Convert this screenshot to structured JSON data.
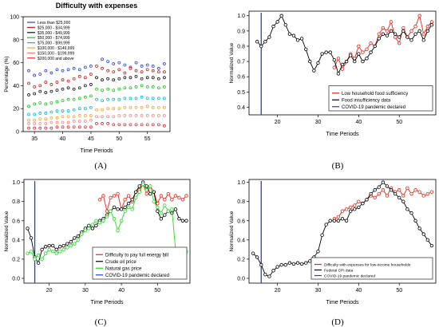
{
  "colors": {
    "axis": "#000000",
    "red": "#e8231a",
    "black": "#000000",
    "blue": "#1f3fd9",
    "green": "#22dd22",
    "income": [
      "#2442e0",
      "#c01e1e",
      "#111111",
      "#14c814",
      "#00bcd4",
      "#ffa024",
      "#ff8080",
      "#e02a2a"
    ]
  },
  "chart_data": [
    {
      "panel": "(A)",
      "type": "line",
      "title": "Difficulty with expenses",
      "xlabel": "Time Periods",
      "ylabel": "Percentage (%)",
      "xlim": [
        33,
        59
      ],
      "ylim": [
        0,
        100
      ],
      "xticks": [
        35,
        40,
        45,
        50,
        55
      ],
      "yticks": [
        0,
        20,
        40,
        60,
        80,
        100
      ],
      "legend_position": "top-left",
      "x": [
        34,
        35,
        36,
        37,
        38,
        39,
        40,
        41,
        42,
        43,
        44,
        45,
        46,
        47,
        48,
        49,
        50,
        51,
        52,
        53,
        54,
        55,
        56,
        57,
        58
      ],
      "series": [
        {
          "name": "Less than $25,000",
          "values": [
            53,
            49,
            50,
            53,
            51,
            54,
            53,
            54,
            55,
            54,
            56,
            57,
            66,
            63,
            61,
            59,
            60,
            58,
            56,
            60,
            57,
            58,
            57,
            55,
            59
          ]
        },
        {
          "name": "$25,000 - $34,999",
          "values": [
            42,
            39,
            40,
            43,
            41,
            43,
            45,
            44,
            46,
            48,
            47,
            50,
            57,
            55,
            53,
            52,
            54,
            51,
            55,
            53,
            52,
            54,
            53,
            52,
            52
          ]
        },
        {
          "name": "$35,000 - $49,999",
          "values": [
            32,
            33,
            35,
            34,
            35,
            36,
            37,
            38,
            37,
            38,
            40,
            41,
            47,
            45,
            46,
            45,
            46,
            47,
            47,
            48,
            46,
            47,
            47,
            46,
            47
          ]
        },
        {
          "name": "$50,000 - $74,999",
          "values": [
            22,
            24,
            25,
            24,
            25,
            26,
            27,
            28,
            28,
            29,
            30,
            31,
            37,
            36,
            37,
            36,
            37,
            38,
            38,
            39,
            40,
            39,
            39,
            38,
            39
          ]
        },
        {
          "name": "$75,000 - $99,999",
          "values": [
            15,
            15,
            16,
            16,
            17,
            18,
            18,
            18,
            19,
            20,
            20,
            21,
            28,
            27,
            28,
            28,
            28,
            29,
            29,
            29,
            30,
            29,
            29,
            29,
            29
          ]
        },
        {
          "name": "$100,000 - $149,999",
          "values": [
            10,
            10,
            11,
            11,
            12,
            12,
            13,
            13,
            13,
            14,
            14,
            14,
            19,
            19,
            20,
            20,
            20,
            21,
            21,
            21,
            21,
            22,
            21,
            21,
            21
          ]
        },
        {
          "name": "$150,000 - $199,999",
          "values": [
            7,
            7,
            7,
            7,
            8,
            8,
            8,
            8,
            9,
            9,
            9,
            10,
            13,
            13,
            13,
            13,
            14,
            14,
            14,
            14,
            14,
            14,
            14,
            14,
            14
          ]
        },
        {
          "name": "$200,000 and above",
          "values": [
            3,
            3,
            3,
            3,
            3,
            4,
            4,
            4,
            4,
            4,
            4,
            4,
            7,
            7,
            7,
            6,
            6,
            6,
            6,
            6,
            6,
            6,
            6,
            6,
            5
          ]
        }
      ]
    },
    {
      "panel": "(B)",
      "type": "line",
      "title": "",
      "xlabel": "Time Periods",
      "ylabel": "Normalized Value",
      "xlim": [
        13,
        59
      ],
      "ylim": [
        0.35,
        1.03
      ],
      "xticks": [
        20,
        30,
        40,
        50
      ],
      "yticks": [
        0.4,
        0.5,
        0.6,
        0.7,
        0.8,
        0.9,
        1.0
      ],
      "legend_position": "bottom-right",
      "vline_x": 16,
      "series": [
        {
          "name": "Low household food sufficiency",
          "color_key": "red",
          "x": [
            34,
            35,
            36,
            37,
            38,
            39,
            40,
            41,
            42,
            43,
            44,
            45,
            46,
            47,
            48,
            49,
            50,
            51,
            52,
            53,
            54,
            55,
            56,
            57,
            58
          ],
          "values": [
            0.66,
            0.72,
            0.65,
            0.7,
            0.75,
            0.72,
            0.8,
            0.76,
            0.78,
            0.82,
            0.8,
            0.88,
            0.92,
            0.9,
            0.96,
            0.86,
            0.82,
            0.92,
            0.86,
            0.9,
            0.93,
            1.0,
            0.88,
            0.93,
            0.96
          ]
        },
        {
          "name": "Food insufficiency data",
          "color_key": "black",
          "x": [
            15,
            16,
            17,
            18,
            19,
            20,
            21,
            22,
            23,
            24,
            25,
            26,
            27,
            28,
            29,
            30,
            31,
            32,
            33,
            34,
            35,
            36,
            37,
            38,
            39,
            40,
            41,
            42,
            43,
            44,
            45,
            46,
            47,
            48,
            49,
            50,
            51,
            52,
            53,
            54,
            55,
            56,
            57,
            58
          ],
          "values": [
            0.83,
            0.8,
            0.83,
            0.86,
            0.93,
            0.96,
            1.0,
            0.94,
            0.88,
            0.87,
            0.84,
            0.85,
            0.78,
            0.7,
            0.64,
            0.69,
            0.75,
            0.76,
            0.76,
            0.71,
            0.62,
            0.68,
            0.7,
            0.74,
            0.7,
            0.75,
            0.7,
            0.72,
            0.76,
            0.8,
            0.85,
            0.88,
            0.87,
            0.9,
            0.88,
            0.86,
            0.9,
            0.86,
            0.84,
            0.88,
            0.9,
            0.84,
            0.9,
            0.94
          ]
        }
      ]
    },
    {
      "panel": "(C)",
      "type": "line",
      "title": "",
      "xlabel": "Time Periods",
      "ylabel": "Normalized Value",
      "xlim": [
        13,
        59
      ],
      "ylim": [
        -0.05,
        1.03
      ],
      "xticks": [
        20,
        30,
        40,
        50
      ],
      "yticks": [
        0.0,
        0.2,
        0.4,
        0.6,
        0.8,
        1.0
      ],
      "legend_position": "bottom-right",
      "vline_x": 16,
      "series": [
        {
          "name": "Difficulty to pay full energy bill",
          "color_key": "red",
          "x": [
            34,
            35,
            36,
            37,
            38,
            39,
            40,
            41,
            42,
            43,
            44,
            45,
            46,
            47,
            48,
            49,
            50,
            51,
            52,
            53,
            54,
            55,
            56,
            57,
            58
          ],
          "values": [
            0.82,
            0.86,
            0.7,
            0.84,
            0.86,
            0.88,
            0.72,
            0.82,
            0.86,
            0.8,
            0.9,
            0.92,
            0.98,
            0.88,
            0.96,
            0.9,
            0.78,
            0.86,
            0.82,
            0.88,
            0.82,
            0.86,
            0.84,
            0.82,
            0.86
          ]
        },
        {
          "name": "Crude oil price",
          "color_key": "black",
          "x": [
            14,
            15,
            16,
            17,
            18,
            19,
            20,
            21,
            22,
            23,
            24,
            25,
            26,
            27,
            28,
            29,
            30,
            31,
            32,
            33,
            34,
            35,
            36,
            37,
            38,
            39,
            40,
            41,
            42,
            43,
            44,
            45,
            46,
            47,
            48,
            49,
            50,
            51,
            52,
            53,
            54,
            55,
            56,
            57,
            58
          ],
          "values": [
            0.52,
            0.42,
            0.22,
            0.16,
            0.3,
            0.33,
            0.34,
            0.34,
            0.3,
            0.33,
            0.34,
            0.36,
            0.38,
            0.42,
            0.44,
            0.48,
            0.52,
            0.55,
            0.52,
            0.55,
            0.6,
            0.62,
            0.66,
            0.7,
            0.74,
            0.72,
            0.72,
            0.74,
            0.78,
            0.82,
            0.9,
            0.96,
            1.0,
            0.96,
            0.88,
            0.9,
            0.7,
            0.62,
            0.66,
            0.7,
            0.68,
            0.72,
            0.62,
            0.6,
            0.6
          ]
        },
        {
          "name": "Natural gas price",
          "color_key": "green",
          "x": [
            14,
            15,
            16,
            17,
            18,
            19,
            20,
            21,
            22,
            23,
            24,
            25,
            26,
            27,
            28,
            29,
            30,
            31,
            32,
            33,
            34,
            35,
            36,
            37,
            38,
            39,
            40,
            41,
            42,
            43,
            44,
            45,
            46,
            47,
            48,
            49,
            50,
            51,
            52,
            53,
            54,
            55,
            56,
            57,
            58
          ],
          "values": [
            0.26,
            0.28,
            0.2,
            0.24,
            0.2,
            0.26,
            0.3,
            0.28,
            0.26,
            0.28,
            0.3,
            0.32,
            0.34,
            0.36,
            0.4,
            0.46,
            0.5,
            0.52,
            0.56,
            0.6,
            0.58,
            0.6,
            0.64,
            0.7,
            0.62,
            0.5,
            0.6,
            0.7,
            0.74,
            0.72,
            0.84,
            0.9,
            0.98,
            0.92,
            0.96,
            0.8,
            0.74,
            0.68,
            0.76,
            0.7,
            0.72,
            0.3,
            0.28,
            0.26,
            0.28
          ]
        }
      ]
    },
    {
      "panel": "(D)",
      "type": "line",
      "title": "",
      "xlabel": "Time Periods",
      "ylabel": "Normalized Value",
      "xlim": [
        13,
        59
      ],
      "ylim": [
        -0.05,
        1.03
      ],
      "xticks": [
        20,
        30,
        40,
        50
      ],
      "yticks": [
        0.0,
        0.2,
        0.4,
        0.6,
        0.8,
        1.0
      ],
      "legend_position": "bottom-right",
      "vline_x": 16,
      "series": [
        {
          "name": "Difficulty with expenses for low-income households",
          "color_key": "red",
          "x": [
            34,
            35,
            36,
            37,
            38,
            39,
            40,
            41,
            42,
            43,
            44,
            45,
            46,
            47,
            48,
            49,
            50,
            51,
            52,
            53,
            54,
            55,
            56,
            57,
            58
          ],
          "values": [
            0.62,
            0.64,
            0.7,
            0.72,
            0.74,
            0.76,
            0.8,
            0.78,
            0.82,
            0.86,
            0.84,
            0.88,
            0.92,
            0.86,
            0.94,
            0.9,
            0.92,
            0.86,
            0.94,
            0.88,
            0.92,
            0.9,
            0.86,
            0.88,
            0.9
          ]
        },
        {
          "name": "Federal CPI data",
          "color_key": "black",
          "x": [
            14,
            15,
            16,
            17,
            18,
            19,
            20,
            21,
            22,
            23,
            24,
            25,
            26,
            27,
            28,
            29,
            30,
            31,
            32,
            33,
            34,
            35,
            36,
            37,
            38,
            39,
            40,
            41,
            42,
            43,
            44,
            45,
            46,
            47,
            48,
            49,
            50,
            51,
            52,
            53,
            54,
            55,
            56,
            57,
            58
          ],
          "values": [
            0.26,
            0.22,
            0.14,
            0.04,
            0.02,
            0.08,
            0.12,
            0.14,
            0.14,
            0.16,
            0.15,
            0.16,
            0.15,
            0.16,
            0.18,
            0.22,
            0.28,
            0.45,
            0.56,
            0.6,
            0.6,
            0.6,
            0.62,
            0.6,
            0.7,
            0.72,
            0.74,
            0.78,
            0.82,
            0.88,
            0.92,
            0.95,
            1.0,
            0.96,
            0.92,
            0.88,
            0.84,
            0.8,
            0.72,
            0.68,
            0.6,
            0.52,
            0.46,
            0.4,
            0.34
          ]
        }
      ]
    }
  ]
}
